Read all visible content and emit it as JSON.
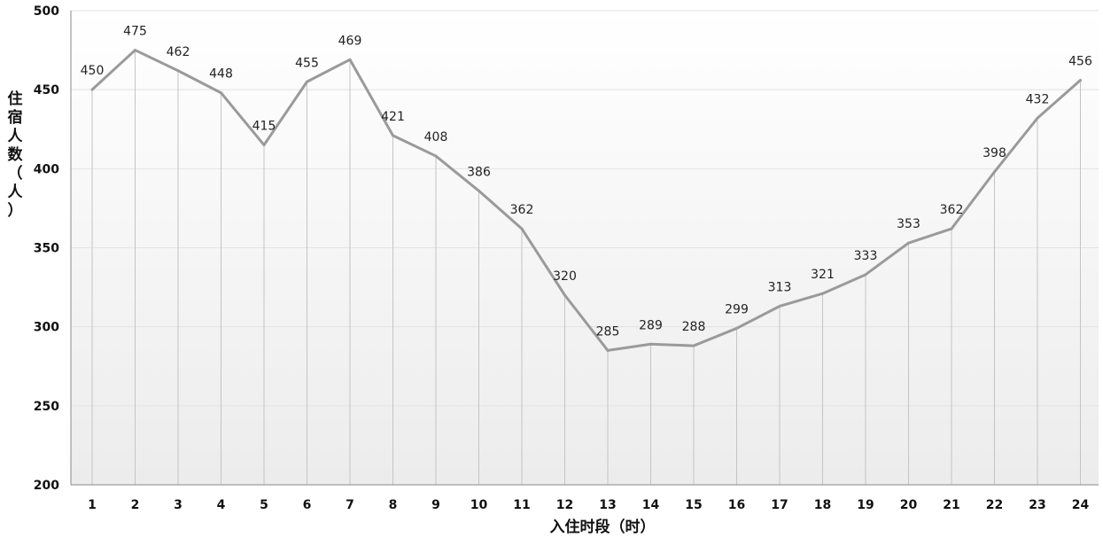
{
  "chart_data": {
    "type": "line",
    "title": "",
    "xlabel": "入住时段（时）",
    "ylabel": "住宿人数（人）",
    "ylim": [
      200,
      500
    ],
    "yticks": [
      200,
      250,
      300,
      350,
      400,
      450,
      500
    ],
    "categories": [
      "1",
      "2",
      "3",
      "4",
      "5",
      "6",
      "7",
      "8",
      "9",
      "10",
      "11",
      "12",
      "13",
      "14",
      "15",
      "16",
      "17",
      "18",
      "19",
      "20",
      "21",
      "22",
      "23",
      "24"
    ],
    "series": [
      {
        "values": [
          450,
          475,
          462,
          448,
          415,
          455,
          469,
          421,
          408,
          386,
          362,
          320,
          285,
          289,
          288,
          299,
          313,
          321,
          333,
          353,
          362,
          398,
          432,
          456
        ]
      }
    ],
    "grid": true,
    "legend": "none",
    "colors": {
      "line": "#9a9a9a",
      "grid": "#e3e3e3",
      "drop_line": "#c4c4c4",
      "axis": "#888888"
    }
  }
}
